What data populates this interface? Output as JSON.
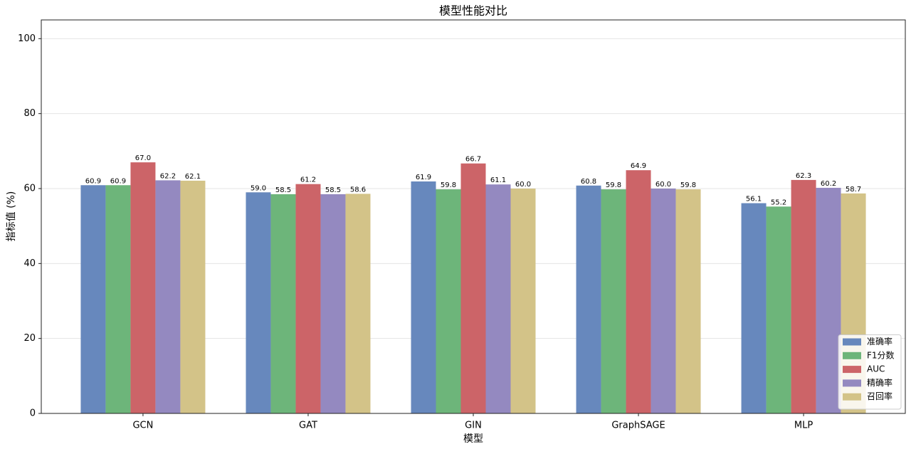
{
  "chart_data": {
    "type": "bar",
    "title": "模型性能对比",
    "x_label": "模型",
    "y_label": "指标值 (%)",
    "categories": [
      "GCN",
      "GAT",
      "GIN",
      "GraphSAGE",
      "MLP"
    ],
    "series": [
      {
        "name": "准确率",
        "color": "#6788bd",
        "values": [
          60.9,
          59.0,
          61.9,
          60.8,
          56.1
        ],
        "value_labels": [
          "60.9",
          "59.0",
          "61.9",
          "60.8",
          "56.1"
        ]
      },
      {
        "name": "F1分数",
        "color": "#6db57a",
        "values": [
          60.9,
          58.5,
          59.8,
          59.8,
          55.2
        ],
        "value_labels": [
          "60.9",
          "58.5",
          "59.8",
          "59.8",
          "55.2"
        ]
      },
      {
        "name": "AUC",
        "color": "#cc6468",
        "values": [
          67.0,
          61.2,
          66.7,
          64.9,
          62.3
        ],
        "value_labels": [
          "67.0",
          "61.2",
          "66.7",
          "64.9",
          "62.3"
        ]
      },
      {
        "name": "精确率",
        "color": "#9489c0",
        "values": [
          62.2,
          58.5,
          61.1,
          60.0,
          60.2
        ],
        "value_labels": [
          "62.2",
          "58.5",
          "61.1",
          "60.0",
          "60.2"
        ]
      },
      {
        "name": "召回率",
        "color": "#d3c388",
        "values": [
          62.1,
          58.6,
          60.0,
          59.8,
          58.7
        ],
        "value_labels": [
          "62.1",
          "58.6",
          "60.0",
          "59.8",
          "58.7"
        ]
      }
    ],
    "ylim": [
      0,
      105
    ],
    "yticks": [
      0,
      20,
      40,
      60,
      80,
      100
    ],
    "grid": true,
    "legend": "lower right"
  }
}
